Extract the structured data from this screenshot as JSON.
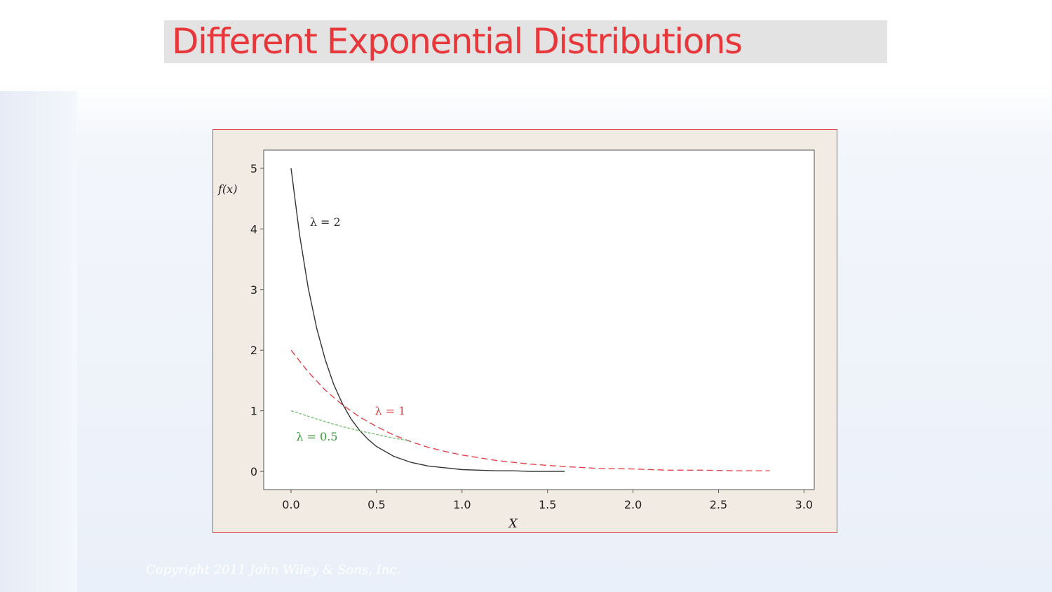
{
  "slide": {
    "title": "Different Exponential Distributions",
    "copyright": "Copyright 2011 John Wiley & Sons, Inc."
  },
  "colors": {
    "title": "#e8373a",
    "title_bar": "#e3e3e3",
    "frame_border": "#e0444a",
    "frame_fill": "#f2ebe3",
    "plot_bg": "#ffffff"
  },
  "chart_data": {
    "type": "line",
    "title": "",
    "xlabel": "X",
    "ylabel": "f(x)",
    "xlim": [
      -0.16,
      3.06
    ],
    "ylim": [
      -0.3,
      5.3
    ],
    "xticks": [
      0.0,
      0.5,
      1.0,
      1.5,
      2.0,
      2.5,
      3.0
    ],
    "xtick_labels": [
      "0.0",
      "0.5",
      "1.0",
      "1.5",
      "2.0",
      "2.5",
      "3.0"
    ],
    "yticks": [
      0,
      1,
      2,
      3,
      4,
      5
    ],
    "ytick_labels": [
      "0",
      "1",
      "2",
      "3",
      "4",
      "5"
    ],
    "grid": false,
    "legend": "none",
    "annotations": [
      {
        "text": "λ = 2",
        "x": 0.11,
        "y": 4.05,
        "color": "#333333"
      },
      {
        "text": "λ = 1",
        "x": 0.49,
        "y": 0.93,
        "color": "#e0444a"
      },
      {
        "text": "λ = 0.5",
        "x": 0.03,
        "y": 0.51,
        "color": "#3a9a3a"
      }
    ],
    "series": [
      {
        "label": "λ = 2",
        "color": "#333333",
        "dash": "solid",
        "x": [
          0.0,
          0.05,
          0.1,
          0.15,
          0.2,
          0.25,
          0.3,
          0.35,
          0.4,
          0.45,
          0.5,
          0.6,
          0.7,
          0.8,
          0.9,
          1.0,
          1.1,
          1.2,
          1.3,
          1.4,
          1.5,
          1.6
        ],
        "y": [
          5.0,
          3.9,
          3.03,
          2.36,
          1.84,
          1.43,
          1.12,
          0.87,
          0.68,
          0.53,
          0.41,
          0.25,
          0.15,
          0.09,
          0.06,
          0.03,
          0.02,
          0.01,
          0.01,
          0.0,
          0.0,
          0.0
        ]
      },
      {
        "label": "λ = 1",
        "color": "#e0444a",
        "dash": "dashed",
        "x": [
          0.0,
          0.1,
          0.2,
          0.3,
          0.4,
          0.5,
          0.6,
          0.7,
          0.8,
          0.9,
          1.0,
          1.2,
          1.4,
          1.6,
          1.8,
          2.0,
          2.2,
          2.4,
          2.6,
          2.8
        ],
        "y": [
          2.0,
          1.64,
          1.34,
          1.1,
          0.9,
          0.74,
          0.6,
          0.49,
          0.4,
          0.33,
          0.27,
          0.18,
          0.12,
          0.08,
          0.05,
          0.04,
          0.02,
          0.02,
          0.01,
          0.01
        ]
      },
      {
        "label": "λ = 0.5",
        "color": "#7cc47c",
        "dash": "dashed",
        "x": [
          0.0,
          0.1,
          0.2,
          0.3,
          0.4,
          0.5,
          0.6,
          0.7
        ],
        "y": [
          1.0,
          0.91,
          0.82,
          0.74,
          0.67,
          0.61,
          0.55,
          0.5
        ]
      }
    ]
  }
}
